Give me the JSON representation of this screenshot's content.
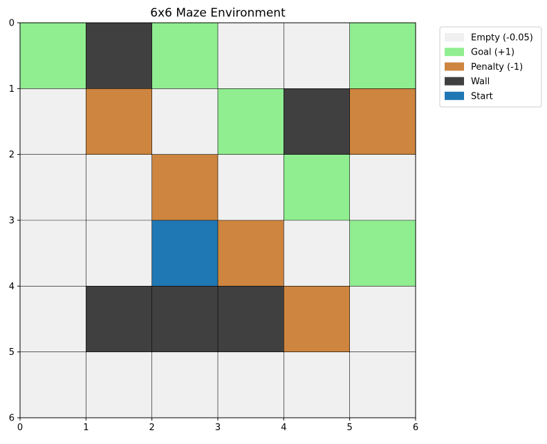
{
  "chart_data": {
    "type": "heatmap",
    "title": "6x6 Maze Environment",
    "xlabel": "",
    "ylabel": "",
    "xlim": [
      0,
      6
    ],
    "ylim": [
      6,
      0
    ],
    "x_ticks": [
      "0",
      "1",
      "2",
      "3",
      "4",
      "5",
      "6"
    ],
    "y_ticks": [
      "0",
      "1",
      "2",
      "3",
      "4",
      "5",
      "6"
    ],
    "grid": true,
    "legend_position": "outside-top-right",
    "categories": [
      {
        "key": "empty",
        "label": "Empty (-0.05)",
        "color": "#f0f0f0"
      },
      {
        "key": "goal",
        "label": "Goal (+1)",
        "color": "#90ee90"
      },
      {
        "key": "penalty",
        "label": "Penalty (-1)",
        "color": "#cd853f"
      },
      {
        "key": "wall",
        "label": "Wall",
        "color": "#404040"
      },
      {
        "key": "start",
        "label": "Start",
        "color": "#1f77b4"
      }
    ],
    "grid_cells": [
      [
        "goal",
        "wall",
        "goal",
        "empty",
        "empty",
        "goal"
      ],
      [
        "empty",
        "penalty",
        "empty",
        "goal",
        "wall",
        "penalty"
      ],
      [
        "empty",
        "empty",
        "penalty",
        "empty",
        "goal",
        "empty"
      ],
      [
        "empty",
        "empty",
        "start",
        "penalty",
        "empty",
        "goal"
      ],
      [
        "empty",
        "wall",
        "wall",
        "wall",
        "penalty",
        "empty"
      ],
      [
        "empty",
        "empty",
        "empty",
        "empty",
        "empty",
        "empty"
      ]
    ]
  }
}
